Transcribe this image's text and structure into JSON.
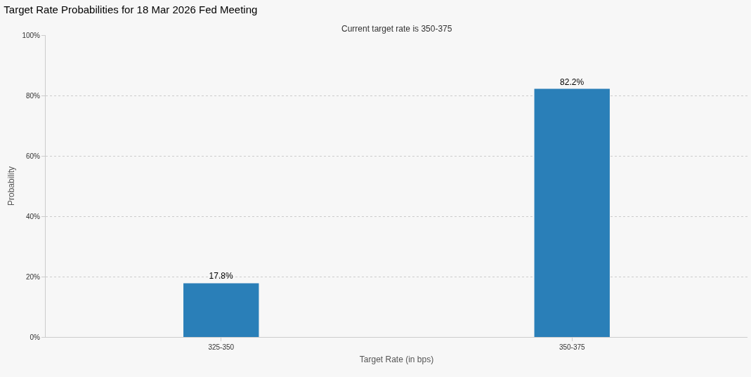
{
  "chart_data": {
    "type": "bar",
    "title": "Target Rate Probabilities for 18 Mar 2026 Fed Meeting",
    "subtitle": "Current target rate is 350-375",
    "xlabel": "Target Rate (in bps)",
    "ylabel": "Probability",
    "categories": [
      "325-350",
      "350-375"
    ],
    "values": [
      17.8,
      82.2
    ],
    "value_labels": [
      "17.8%",
      "82.2%"
    ],
    "color": "#2a7fb8",
    "ylim": [
      0,
      100
    ],
    "yticks": [
      {
        "value": 0,
        "label": "0%"
      },
      {
        "value": 20,
        "label": "20%"
      },
      {
        "value": 40,
        "label": "40%"
      },
      {
        "value": 60,
        "label": "60%"
      },
      {
        "value": 80,
        "label": "80%"
      },
      {
        "value": 100,
        "label": "100%"
      }
    ],
    "grid": "y"
  }
}
